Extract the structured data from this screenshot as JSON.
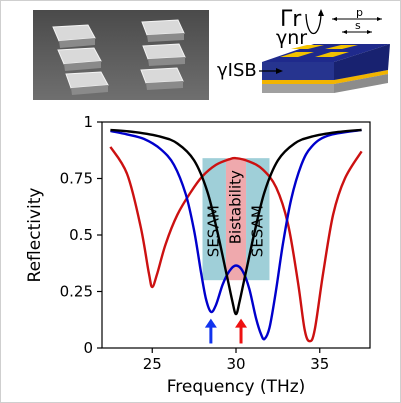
{
  "schematic": {
    "gamma_r": "Γr",
    "gamma_nr": "γnr",
    "gamma_isb": "γISB",
    "p_label": "p",
    "s_label": "s",
    "colors": {
      "substrate": "#b8b8b8",
      "bottom_gold": "#f2b400",
      "dielectric": "#1f2a8c",
      "patch": "#f2c200"
    }
  },
  "chart_data": {
    "type": "line",
    "xlabel": "Frequency (THz)",
    "ylabel": "Reflectivity",
    "xlim": [
      22,
      38
    ],
    "ylim": [
      0,
      1
    ],
    "xticks": [
      25,
      30,
      35
    ],
    "yticks": [
      0,
      0.25,
      0.5,
      0.75,
      1
    ],
    "ytick_labels": [
      "0",
      "0.25",
      "0.5",
      "0.75",
      "1"
    ],
    "grid": false,
    "series": [
      {
        "color": "#cc1111",
        "points": [
          [
            22.5,
            0.89
          ],
          [
            23.5,
            0.77
          ],
          [
            24.3,
            0.54
          ],
          [
            24.8,
            0.33
          ],
          [
            25.0,
            0.27
          ],
          [
            25.3,
            0.33
          ],
          [
            25.8,
            0.46
          ],
          [
            26.5,
            0.59
          ],
          [
            27.3,
            0.69
          ],
          [
            28.0,
            0.76
          ],
          [
            28.8,
            0.81
          ],
          [
            29.6,
            0.835
          ],
          [
            30.0,
            0.84
          ],
          [
            30.8,
            0.825
          ],
          [
            31.6,
            0.79
          ],
          [
            32.4,
            0.71
          ],
          [
            33.1,
            0.55
          ],
          [
            33.7,
            0.29
          ],
          [
            34.1,
            0.08
          ],
          [
            34.4,
            0.03
          ],
          [
            34.7,
            0.08
          ],
          [
            35.2,
            0.33
          ],
          [
            35.8,
            0.59
          ],
          [
            36.5,
            0.75
          ],
          [
            37.5,
            0.87
          ]
        ]
      },
      {
        "color": "#0000cc",
        "points": [
          [
            22.5,
            0.96
          ],
          [
            23.5,
            0.945
          ],
          [
            24.5,
            0.925
          ],
          [
            25.5,
            0.88
          ],
          [
            26.3,
            0.81
          ],
          [
            27.0,
            0.68
          ],
          [
            27.5,
            0.52
          ],
          [
            27.9,
            0.34
          ],
          [
            28.2,
            0.22
          ],
          [
            28.5,
            0.16
          ],
          [
            28.8,
            0.19
          ],
          [
            29.2,
            0.28
          ],
          [
            29.6,
            0.34
          ],
          [
            30.0,
            0.365
          ],
          [
            30.4,
            0.34
          ],
          [
            30.8,
            0.26
          ],
          [
            31.2,
            0.13
          ],
          [
            31.5,
            0.06
          ],
          [
            31.7,
            0.04
          ],
          [
            32.0,
            0.09
          ],
          [
            32.4,
            0.26
          ],
          [
            32.8,
            0.46
          ],
          [
            33.3,
            0.66
          ],
          [
            33.9,
            0.81
          ],
          [
            34.5,
            0.89
          ],
          [
            35.5,
            0.94
          ],
          [
            37.5,
            0.965
          ]
        ]
      },
      {
        "color": "#000000",
        "points": [
          [
            22.5,
            0.965
          ],
          [
            24.0,
            0.955
          ],
          [
            25.5,
            0.935
          ],
          [
            26.5,
            0.905
          ],
          [
            27.5,
            0.83
          ],
          [
            28.3,
            0.69
          ],
          [
            28.9,
            0.51
          ],
          [
            29.4,
            0.34
          ],
          [
            29.8,
            0.2
          ],
          [
            30.0,
            0.15
          ],
          [
            30.2,
            0.2
          ],
          [
            30.6,
            0.34
          ],
          [
            31.1,
            0.51
          ],
          [
            31.7,
            0.69
          ],
          [
            32.5,
            0.83
          ],
          [
            33.5,
            0.905
          ],
          [
            34.5,
            0.935
          ],
          [
            36.0,
            0.955
          ],
          [
            37.5,
            0.965
          ]
        ]
      }
    ],
    "bands": [
      {
        "label": "SESAM",
        "x": [
          28.0,
          29.4
        ],
        "color": "#9fcfd8"
      },
      {
        "label": "Bistability",
        "x": [
          29.4,
          30.6
        ],
        "color": "#efa9ad"
      },
      {
        "label": "SESAM",
        "x": [
          30.6,
          32.0
        ],
        "color": "#9fcfd8"
      }
    ],
    "arrows": [
      {
        "x": 28.5,
        "color": "#1133ee"
      },
      {
        "x": 30.3,
        "color": "#ee1111"
      }
    ]
  }
}
